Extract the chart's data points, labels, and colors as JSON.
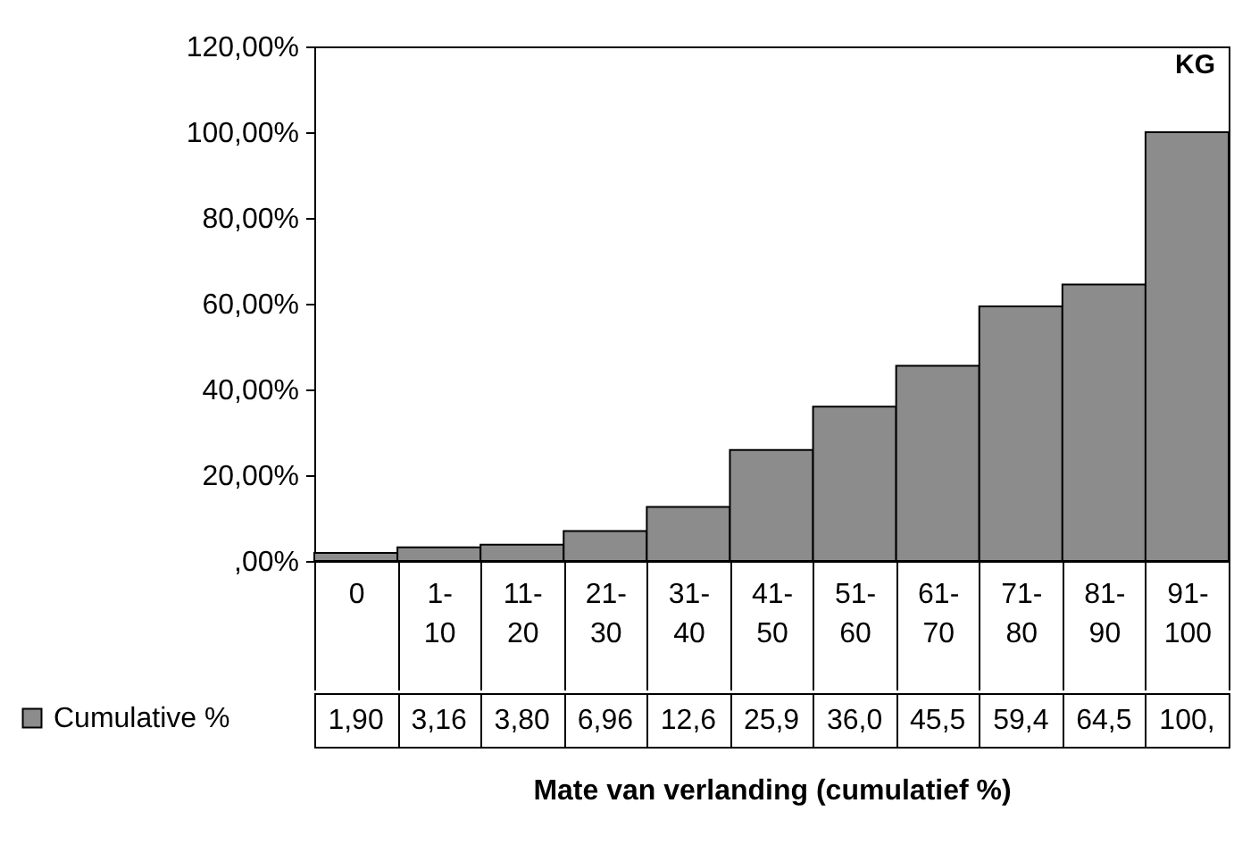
{
  "chart_data": {
    "type": "bar",
    "title": "KG",
    "xlabel": "Mate van verlanding (cumulatief %)",
    "categories": [
      "0",
      "1-10",
      "11-20",
      "21-30",
      "31-40",
      "41-50",
      "51-60",
      "61-70",
      "71-80",
      "81-90",
      "91-100"
    ],
    "series": [
      {
        "name": "Cumulative %",
        "color": "#8c8c8c",
        "values": [
          1.9,
          3.16,
          3.8,
          6.96,
          12.6,
          25.9,
          36.0,
          45.5,
          59.4,
          64.5,
          100
        ],
        "value_labels": [
          "1,90",
          "3,16",
          "3,80",
          "6,96",
          "12,6",
          "25,9",
          "36,0",
          "45,5",
          "59,4",
          "64,5",
          "100,"
        ]
      }
    ],
    "ylim": [
      0,
      120
    ],
    "yticks": [
      {
        "value": 0,
        "label": ",00%"
      },
      {
        "value": 20,
        "label": "20,00%"
      },
      {
        "value": 40,
        "label": "40,00%"
      },
      {
        "value": 60,
        "label": "60,00%"
      },
      {
        "value": 80,
        "label": "80,00%"
      },
      {
        "value": 100,
        "label": "100,00%"
      },
      {
        "value": 120,
        "label": "120,00%"
      }
    ],
    "grid": false,
    "legend": "bottom left"
  }
}
